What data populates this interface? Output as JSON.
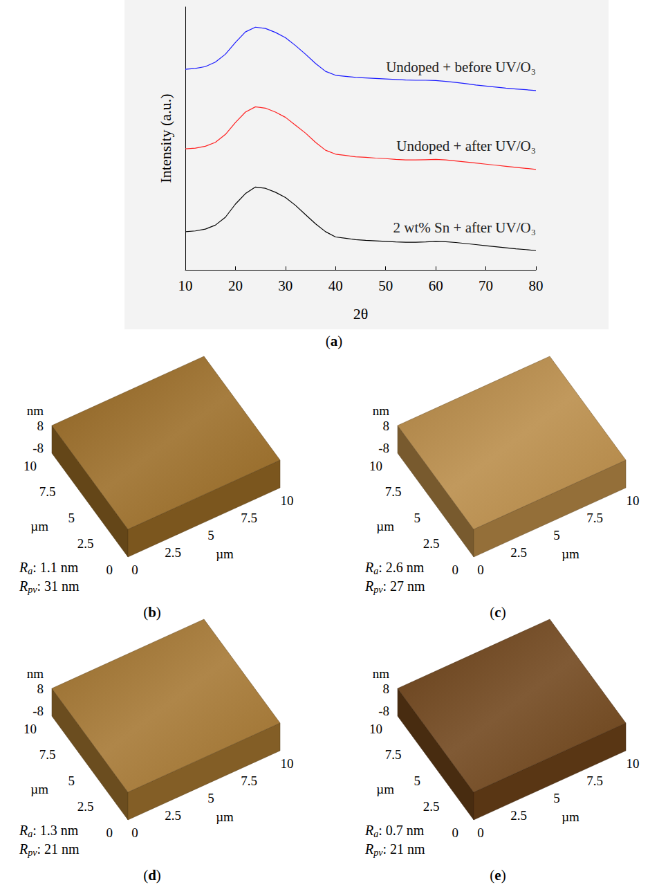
{
  "chart_data": [
    {
      "type": "line",
      "panel": "(a)",
      "xlabel": "2θ",
      "ylabel": "Intensity (a.u.)",
      "x": [
        10,
        12,
        14,
        16,
        18,
        20,
        22,
        24,
        26,
        28,
        30,
        32,
        34,
        36,
        38,
        40,
        42,
        44,
        46,
        48,
        50,
        52,
        54,
        56,
        58,
        60,
        62,
        64,
        66,
        68,
        70,
        72,
        74,
        76,
        78,
        80
      ],
      "series": [
        {
          "name": "Undoped + before UV/O₃",
          "color": "#1a1aff",
          "values": [
            76.3,
            76.6,
            77.3,
            79,
            82,
            86.5,
            90.5,
            92.3,
            91.8,
            90.3,
            88.3,
            85.3,
            82,
            78.5,
            75.5,
            74,
            73.6,
            73.2,
            73,
            72.8,
            72.6,
            72.4,
            72.2,
            72.1,
            72.1,
            72,
            71.7,
            71.3,
            70.8,
            70.3,
            69.9,
            69.5,
            69.1,
            68.8,
            68.5,
            68.2
          ]
        },
        {
          "name": "Undoped + after UV/O₃",
          "color": "#ff2020",
          "values": [
            46,
            46.3,
            47,
            48.5,
            51.5,
            56,
            60,
            62,
            61.5,
            60,
            58,
            55,
            52,
            48.5,
            45.5,
            44,
            43.5,
            43,
            42.8,
            42.5,
            42.3,
            42,
            41.8,
            41.8,
            41.9,
            42,
            41.8,
            41.4,
            41,
            40.6,
            40.2,
            39.8,
            39.4,
            39,
            38.6,
            38.2
          ]
        },
        {
          "name": "2 wt% Sn + after UV/O₃",
          "color": "#000000",
          "values": [
            14.5,
            14.8,
            15.5,
            17,
            20,
            25,
            29,
            31.5,
            31,
            29.5,
            27.5,
            24.5,
            21,
            17.5,
            14.5,
            12.5,
            12,
            11.5,
            11.2,
            11,
            10.8,
            10.6,
            10.5,
            10.5,
            10.6,
            10.8,
            10.7,
            10.4,
            10,
            9.6,
            9.2,
            8.8,
            8.4,
            8,
            7.7,
            7.3
          ]
        }
      ],
      "xlim": [
        10,
        80
      ],
      "xticks": [
        10,
        20,
        30,
        40,
        50,
        60,
        70,
        80
      ],
      "ylim": [
        0,
        100
      ],
      "tick_labels": "x",
      "grid": false
    },
    {
      "type": "surface",
      "panel": "(b)",
      "xlabel": "µm",
      "ylabel": "µm",
      "zlabel": "nm",
      "xlim": [
        0,
        10
      ],
      "xticks": [
        0,
        2.5,
        5,
        7.5,
        10
      ],
      "ylim": [
        0,
        10
      ],
      "yticks": [
        0,
        2.5,
        5,
        7.5,
        10
      ],
      "zlim": [
        -8,
        8
      ],
      "zticks": [
        -8,
        8
      ],
      "color": "#9a6b25",
      "annotations": [
        {
          "symbol": "R",
          "subscript": "a",
          "separator": ":",
          "value": 1.1,
          "unit": "nm"
        },
        {
          "symbol": "R",
          "subscript": "pv",
          "separator": ":",
          "value": 31,
          "unit": "nm"
        }
      ]
    },
    {
      "type": "surface",
      "panel": "(c)",
      "xlabel": "µm",
      "ylabel": "µm",
      "zlabel": "nm",
      "xlim": [
        0,
        10
      ],
      "xticks": [
        0,
        2.5,
        5,
        7.5,
        10
      ],
      "ylim": [
        0,
        10
      ],
      "yticks": [
        0,
        2.5,
        5,
        7.5,
        10
      ],
      "zlim": [
        -8,
        8
      ],
      "zticks": [
        -8,
        8
      ],
      "color": "#b98b47",
      "annotations": [
        {
          "symbol": "R",
          "subscript": "a",
          "separator": ":",
          "value": 2.6,
          "unit": "nm"
        },
        {
          "symbol": "R",
          "subscript": "pv",
          "separator": ":",
          "value": 27,
          "unit": "nm"
        }
      ]
    },
    {
      "type": "surface",
      "panel": "(d)",
      "xlabel": "µm",
      "ylabel": "µm",
      "zlabel": "nm",
      "xlim": [
        0,
        10
      ],
      "xticks": [
        0,
        2.5,
        5,
        7.5,
        10
      ],
      "ylim": [
        0,
        10
      ],
      "yticks": [
        0,
        2.5,
        5,
        7.5,
        10
      ],
      "zlim": [
        -8,
        8
      ],
      "zticks": [
        -8,
        8
      ],
      "color": "#a47630",
      "annotations": [
        {
          "symbol": "R",
          "subscript": "a",
          "separator": ":",
          "value": 1.3,
          "unit": "nm"
        },
        {
          "symbol": "R",
          "subscript": "pv",
          "separator": ":",
          "value": 21,
          "unit": "nm"
        }
      ]
    },
    {
      "type": "surface",
      "panel": "(e)",
      "xlabel": "µm",
      "ylabel": "µm",
      "zlabel": "nm",
      "xlim": [
        0,
        10
      ],
      "xticks": [
        0,
        2.5,
        5,
        7.5,
        10
      ],
      "ylim": [
        0,
        10
      ],
      "yticks": [
        0,
        2.5,
        5,
        7.5,
        10
      ],
      "zlim": [
        -8,
        8
      ],
      "zticks": [
        -8,
        8
      ],
      "color": "#6f4419",
      "annotations": [
        {
          "symbol": "R",
          "subscript": "a",
          "separator": ":",
          "value": 0.7,
          "unit": "nm"
        },
        {
          "symbol": "R",
          "subscript": "pv",
          "separator": ":",
          "value": 21,
          "unit": "nm"
        }
      ]
    }
  ]
}
